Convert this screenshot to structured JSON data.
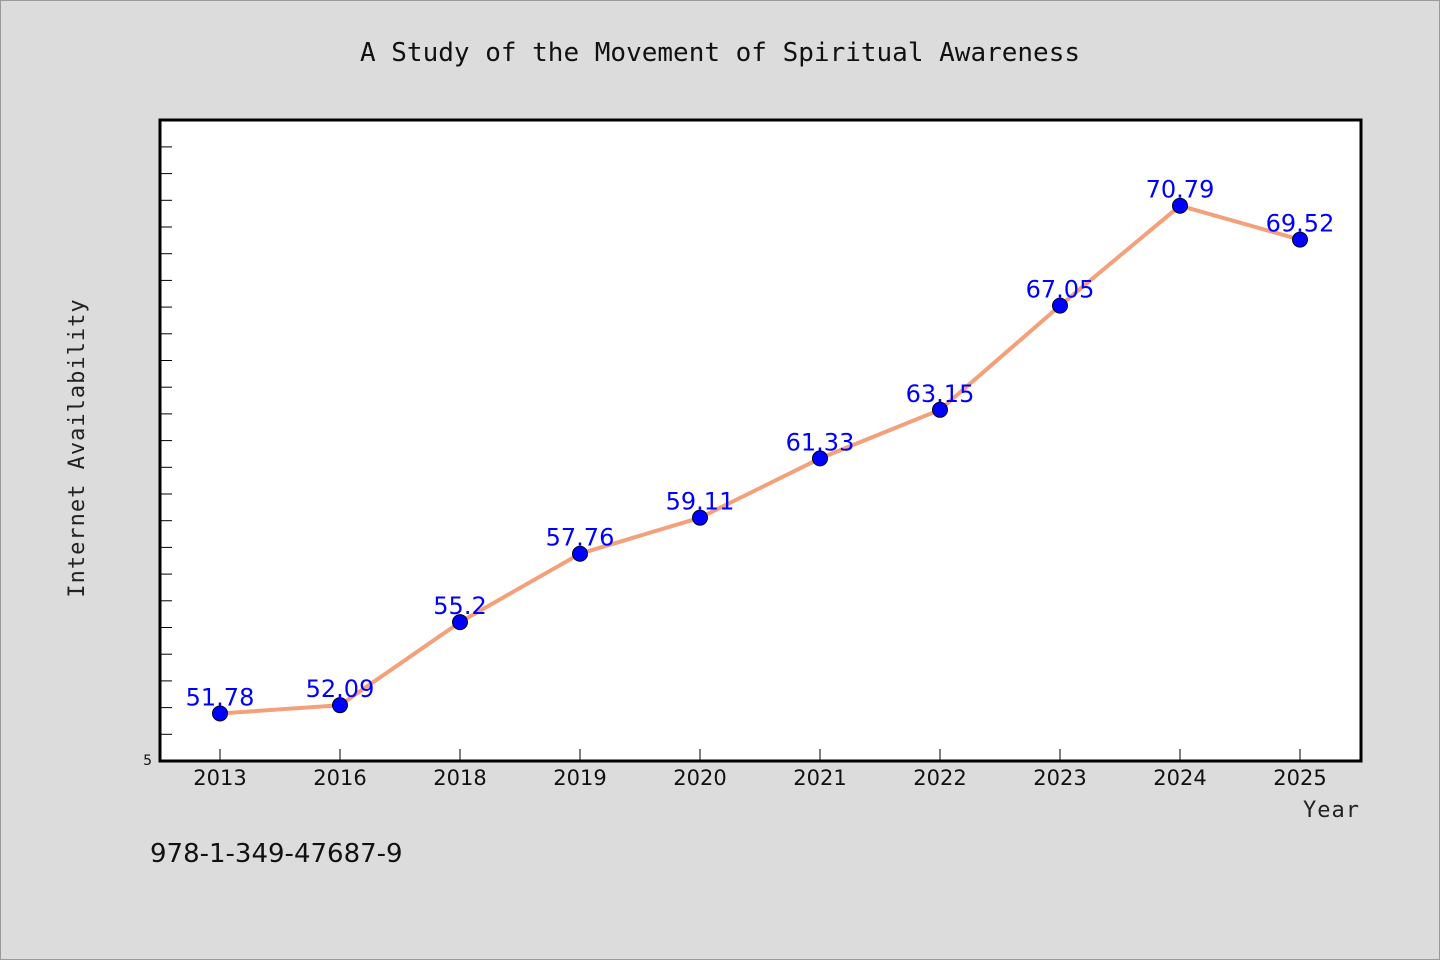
{
  "chart_data": {
    "type": "line",
    "title": "A Study of the Movement of Spiritual Awareness",
    "xlabel": "Year",
    "ylabel": "Internet Availability",
    "categories": [
      "2013",
      "2016",
      "2018",
      "2019",
      "2020",
      "2021",
      "2022",
      "2023",
      "2024",
      "2025"
    ],
    "series": [
      {
        "values": [
          51.78,
          52.09,
          55.2,
          57.76,
          59.11,
          61.33,
          63.15,
          67.05,
          70.79,
          69.52
        ],
        "labels": [
          "51.78",
          "52.09",
          "55.2",
          "57.76",
          "59.11",
          "61.33",
          "63.15",
          "67.05",
          "70.79",
          "69.52"
        ],
        "line_color": "#f4a07a",
        "marker_color": "#0000ff"
      }
    ],
    "ylim": [
      50,
      74
    ],
    "y_tick_label": "5",
    "grid": false,
    "legend": "none"
  },
  "footer_text": "978-1-349-47687-9"
}
